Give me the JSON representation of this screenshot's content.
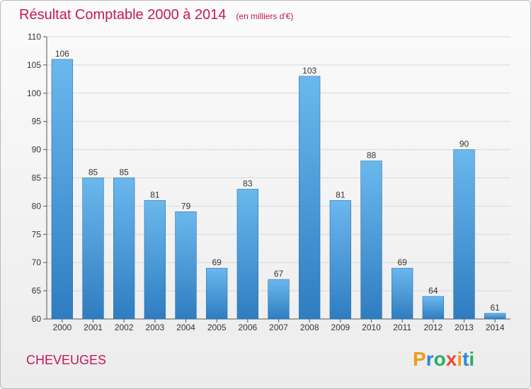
{
  "chart_data": {
    "type": "bar",
    "title": "Résultat Comptable 2000 à 2014",
    "unit_note": "(en milliers d'€)",
    "categories": [
      "2000",
      "2001",
      "2002",
      "2003",
      "2004",
      "2005",
      "2006",
      "2007",
      "2008",
      "2009",
      "2010",
      "2011",
      "2012",
      "2013",
      "2014"
    ],
    "values": [
      106,
      85,
      85,
      81,
      79,
      69,
      83,
      67,
      103,
      81,
      88,
      69,
      64,
      90,
      61
    ],
    "ylim": [
      60,
      110
    ],
    "yticks": [
      60,
      65,
      70,
      75,
      80,
      85,
      90,
      95,
      100,
      105,
      110
    ],
    "xlabel": "",
    "ylabel": "",
    "grid": true
  },
  "commune": "CHEVEUGES",
  "logo": {
    "letters": [
      "P",
      "r",
      "o",
      "x",
      "i",
      "t",
      "i"
    ],
    "colors": [
      "#f39c12",
      "#2e86de",
      "#27ae60",
      "#e74c3c",
      "#f39c12",
      "#2e86de",
      "#27ae60"
    ]
  },
  "colors": {
    "bar_light": "#6bb8ee",
    "bar_dark": "#2e78b8",
    "title": "#c2185b"
  }
}
